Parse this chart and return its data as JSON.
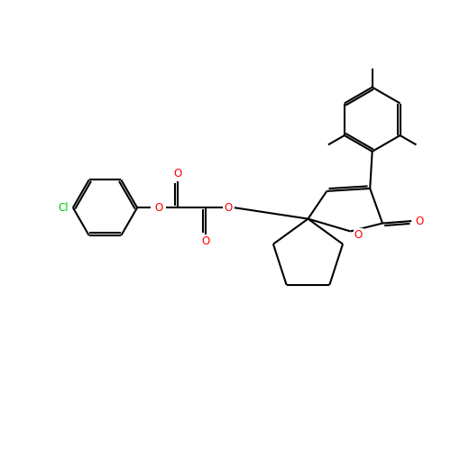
{
  "background_color": "#ffffff",
  "bond_color": "#000000",
  "oxygen_color": "#ff0000",
  "chlorine_color": "#00cc00",
  "lw": 1.5,
  "figsize": [
    5.0,
    5.0
  ],
  "dpi": 100,
  "xlim": [
    0,
    10
  ],
  "ylim": [
    0,
    10
  ]
}
